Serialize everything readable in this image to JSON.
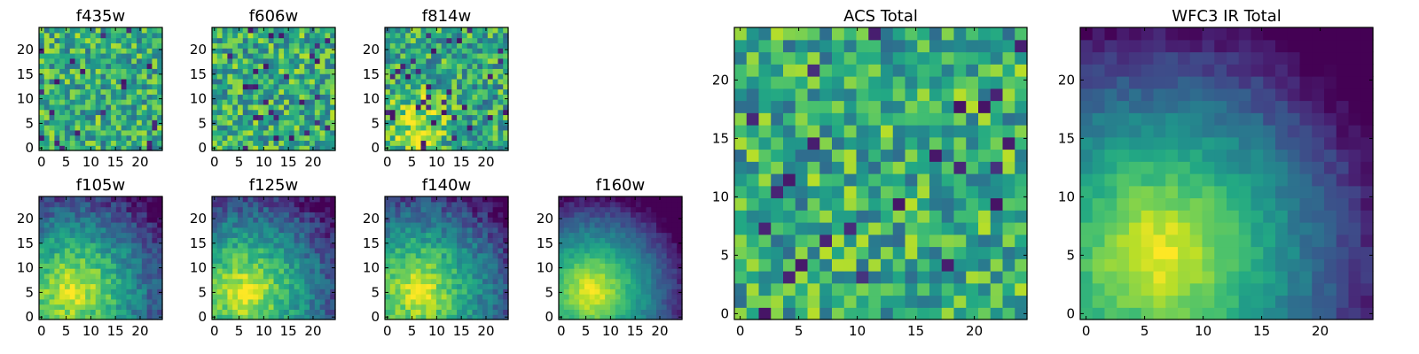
{
  "chart_data": [
    {
      "type": "heatmap",
      "title": "f435w",
      "pattern": "noise",
      "x_ticks": [
        "0",
        "5",
        "10",
        "15",
        "20"
      ],
      "y_ticks": [
        "0",
        "5",
        "10",
        "15",
        "20"
      ],
      "xlim": [
        0,
        24
      ],
      "ylim": [
        0,
        24
      ],
      "grid_size": 24,
      "colormap": "viridis"
    },
    {
      "type": "heatmap",
      "title": "f606w",
      "pattern": "noise",
      "x_ticks": [
        "0",
        "5",
        "10",
        "15",
        "20"
      ],
      "y_ticks": [
        "0",
        "5",
        "10",
        "15",
        "20"
      ],
      "xlim": [
        0,
        24
      ],
      "ylim": [
        0,
        24
      ],
      "grid_size": 24,
      "colormap": "viridis"
    },
    {
      "type": "heatmap",
      "title": "f814w",
      "pattern": "noise_bright_lower_left",
      "x_ticks": [
        "0",
        "5",
        "10",
        "15",
        "20"
      ],
      "y_ticks": [
        "0",
        "5",
        "10",
        "15",
        "20"
      ],
      "xlim": [
        0,
        24
      ],
      "ylim": [
        0,
        24
      ],
      "grid_size": 24,
      "colormap": "viridis"
    },
    {
      "type": "heatmap",
      "title": "f105w",
      "pattern": "gradient",
      "x_ticks": [
        "0",
        "5",
        "10",
        "15",
        "20"
      ],
      "y_ticks": [
        "0",
        "5",
        "10",
        "15",
        "20"
      ],
      "xlim": [
        0,
        24
      ],
      "ylim": [
        0,
        24
      ],
      "grid_size": 24,
      "colormap": "viridis"
    },
    {
      "type": "heatmap",
      "title": "f125w",
      "pattern": "gradient",
      "x_ticks": [
        "0",
        "5",
        "10",
        "15",
        "20"
      ],
      "y_ticks": [
        "0",
        "5",
        "10",
        "15",
        "20"
      ],
      "xlim": [
        0,
        24
      ],
      "ylim": [
        0,
        24
      ],
      "grid_size": 24,
      "colormap": "viridis"
    },
    {
      "type": "heatmap",
      "title": "f140w",
      "pattern": "gradient",
      "x_ticks": [
        "0",
        "5",
        "10",
        "15",
        "20"
      ],
      "y_ticks": [
        "0",
        "5",
        "10",
        "15",
        "20"
      ],
      "xlim": [
        0,
        24
      ],
      "ylim": [
        0,
        24
      ],
      "grid_size": 24,
      "colormap": "viridis"
    },
    {
      "type": "heatmap",
      "title": "f160w",
      "pattern": "gradient_strong",
      "x_ticks": [
        "0",
        "5",
        "10",
        "15",
        "20"
      ],
      "y_ticks": [
        "0",
        "5",
        "10",
        "15",
        "20"
      ],
      "xlim": [
        0,
        24
      ],
      "ylim": [
        0,
        24
      ],
      "grid_size": 24,
      "colormap": "viridis"
    },
    {
      "type": "heatmap",
      "title": "ACS Total",
      "pattern": "noise",
      "x_ticks": [
        "0",
        "5",
        "10",
        "15",
        "20"
      ],
      "y_ticks": [
        "0",
        "5",
        "10",
        "15",
        "20"
      ],
      "xlim": [
        0,
        24
      ],
      "ylim": [
        0,
        24
      ],
      "grid_size": 24,
      "colormap": "viridis"
    },
    {
      "type": "heatmap",
      "title": "WFC3 IR Total",
      "pattern": "gradient_strong",
      "x_ticks": [
        "0",
        "5",
        "10",
        "15",
        "20"
      ],
      "y_ticks": [
        "0",
        "5",
        "10",
        "15",
        "20"
      ],
      "xlim": [
        0,
        24
      ],
      "ylim": [
        0,
        24
      ],
      "grid_size": 24,
      "colormap": "viridis"
    }
  ]
}
